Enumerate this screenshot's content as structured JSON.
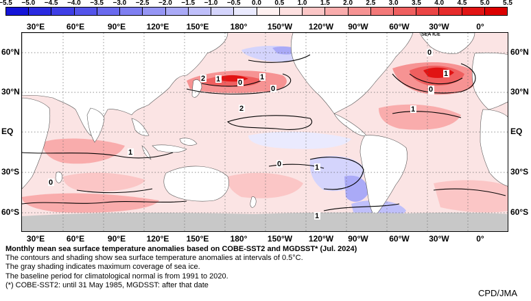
{
  "colorbar": {
    "labels": [
      "−5.5",
      "−5.0",
      "−4.5",
      "−4.0",
      "−3.5",
      "−3.0",
      "−2.5",
      "−2.0",
      "−1.5",
      "−1.0",
      "−0.5",
      "0.0",
      "0.5",
      "1.0",
      "1.5",
      "2.0",
      "2.5",
      "3.0",
      "3.5",
      "4.0",
      "4.5",
      "5.0",
      "5.5"
    ],
    "colors": [
      "#1414d8",
      "#2a2ae0",
      "#3f3fe6",
      "#5454ea",
      "#6a6aee",
      "#7f7ff1",
      "#9595f4",
      "#aaaaf7",
      "#bfbffa",
      "#d4d4fc",
      "#eaeafe",
      "#fef0f0",
      "#fde0e0",
      "#fbc6c6",
      "#f9acac",
      "#f69393",
      "#f37979",
      "#ef5f5f",
      "#eb4545",
      "#e62b2b",
      "#e11414",
      "#dc0000"
    ]
  },
  "axes": {
    "lon_labels_top": [
      "30°E",
      "60°E",
      "90°E",
      "120°E",
      "150°E",
      "180°",
      "150°W",
      "120°W",
      "90°W",
      "60°W",
      "30°W",
      "0°"
    ],
    "lon_labels_bottom": [
      "30°E",
      "60°E",
      "90°E",
      "120°E",
      "150°E",
      "180°",
      "150°W",
      "120°W",
      "90°W",
      "60°W",
      "30°W",
      "0°"
    ],
    "lat_labels_left": [
      "60°N",
      "30°N",
      "EQ",
      "30°S",
      "60°S"
    ],
    "lat_labels_right": [
      "60°N",
      "30°N",
      "EQ",
      "30°S",
      "60°S"
    ]
  },
  "map": {
    "sea_ice_label": "SEA ICE",
    "contour_labels": [
      "0",
      "2",
      "1",
      "0",
      "1",
      "0",
      "2",
      "1",
      "1",
      "0",
      "1",
      "0",
      "1",
      "0",
      "1",
      "1"
    ],
    "land_color": "#ffffff",
    "ice_color": "#c8c8c8"
  },
  "caption": {
    "title": "Monthly mean sea surface temperature anomalies based on COBE-SST2 and MGDSST* (Jul. 2024)",
    "line1": "The contours and shading show sea surface temperature anomalies at intervals of 0.5°C.",
    "line2": "The gray shading indicates maximum coverage of sea ice.",
    "line3": "The baseline period for climatological normal is from 1991 to 2020.",
    "line4": "(*) COBE-SST2: until 31 May 1985, MGDSST: after that date"
  },
  "credit": "CPD/JMA"
}
